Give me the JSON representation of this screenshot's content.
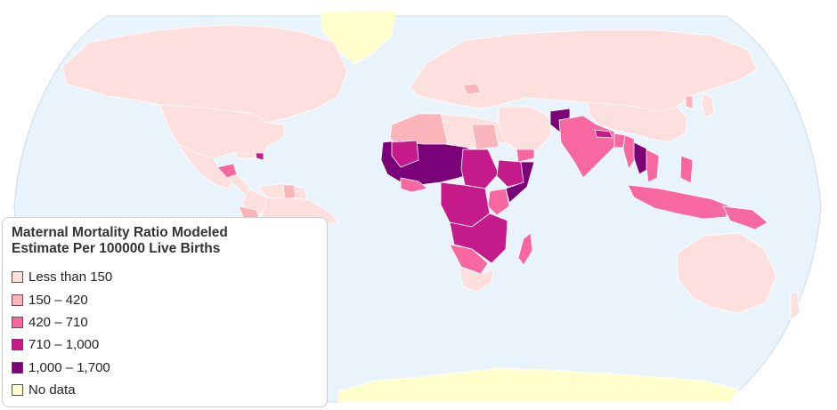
{
  "legend": {
    "title_line1": "Maternal Mortality Ratio Modeled",
    "title_line2": "Estimate Per 100000 Live Births",
    "classes": [
      {
        "label": "Less than 150",
        "color": "#fde0dd"
      },
      {
        "label": "150 – 420",
        "color": "#fbb4b9"
      },
      {
        "label": "420 – 710",
        "color": "#f768a1"
      },
      {
        "label": "710 – 1,000",
        "color": "#c51b8a"
      },
      {
        "label": "1,000 – 1,700",
        "color": "#7a0177"
      },
      {
        "label": "No data",
        "color": "#ffffcc"
      }
    ]
  },
  "colors": {
    "ocean": "#e9f3fb",
    "ocean_border": "#c9dcea",
    "country_border": "#ffffff"
  }
}
